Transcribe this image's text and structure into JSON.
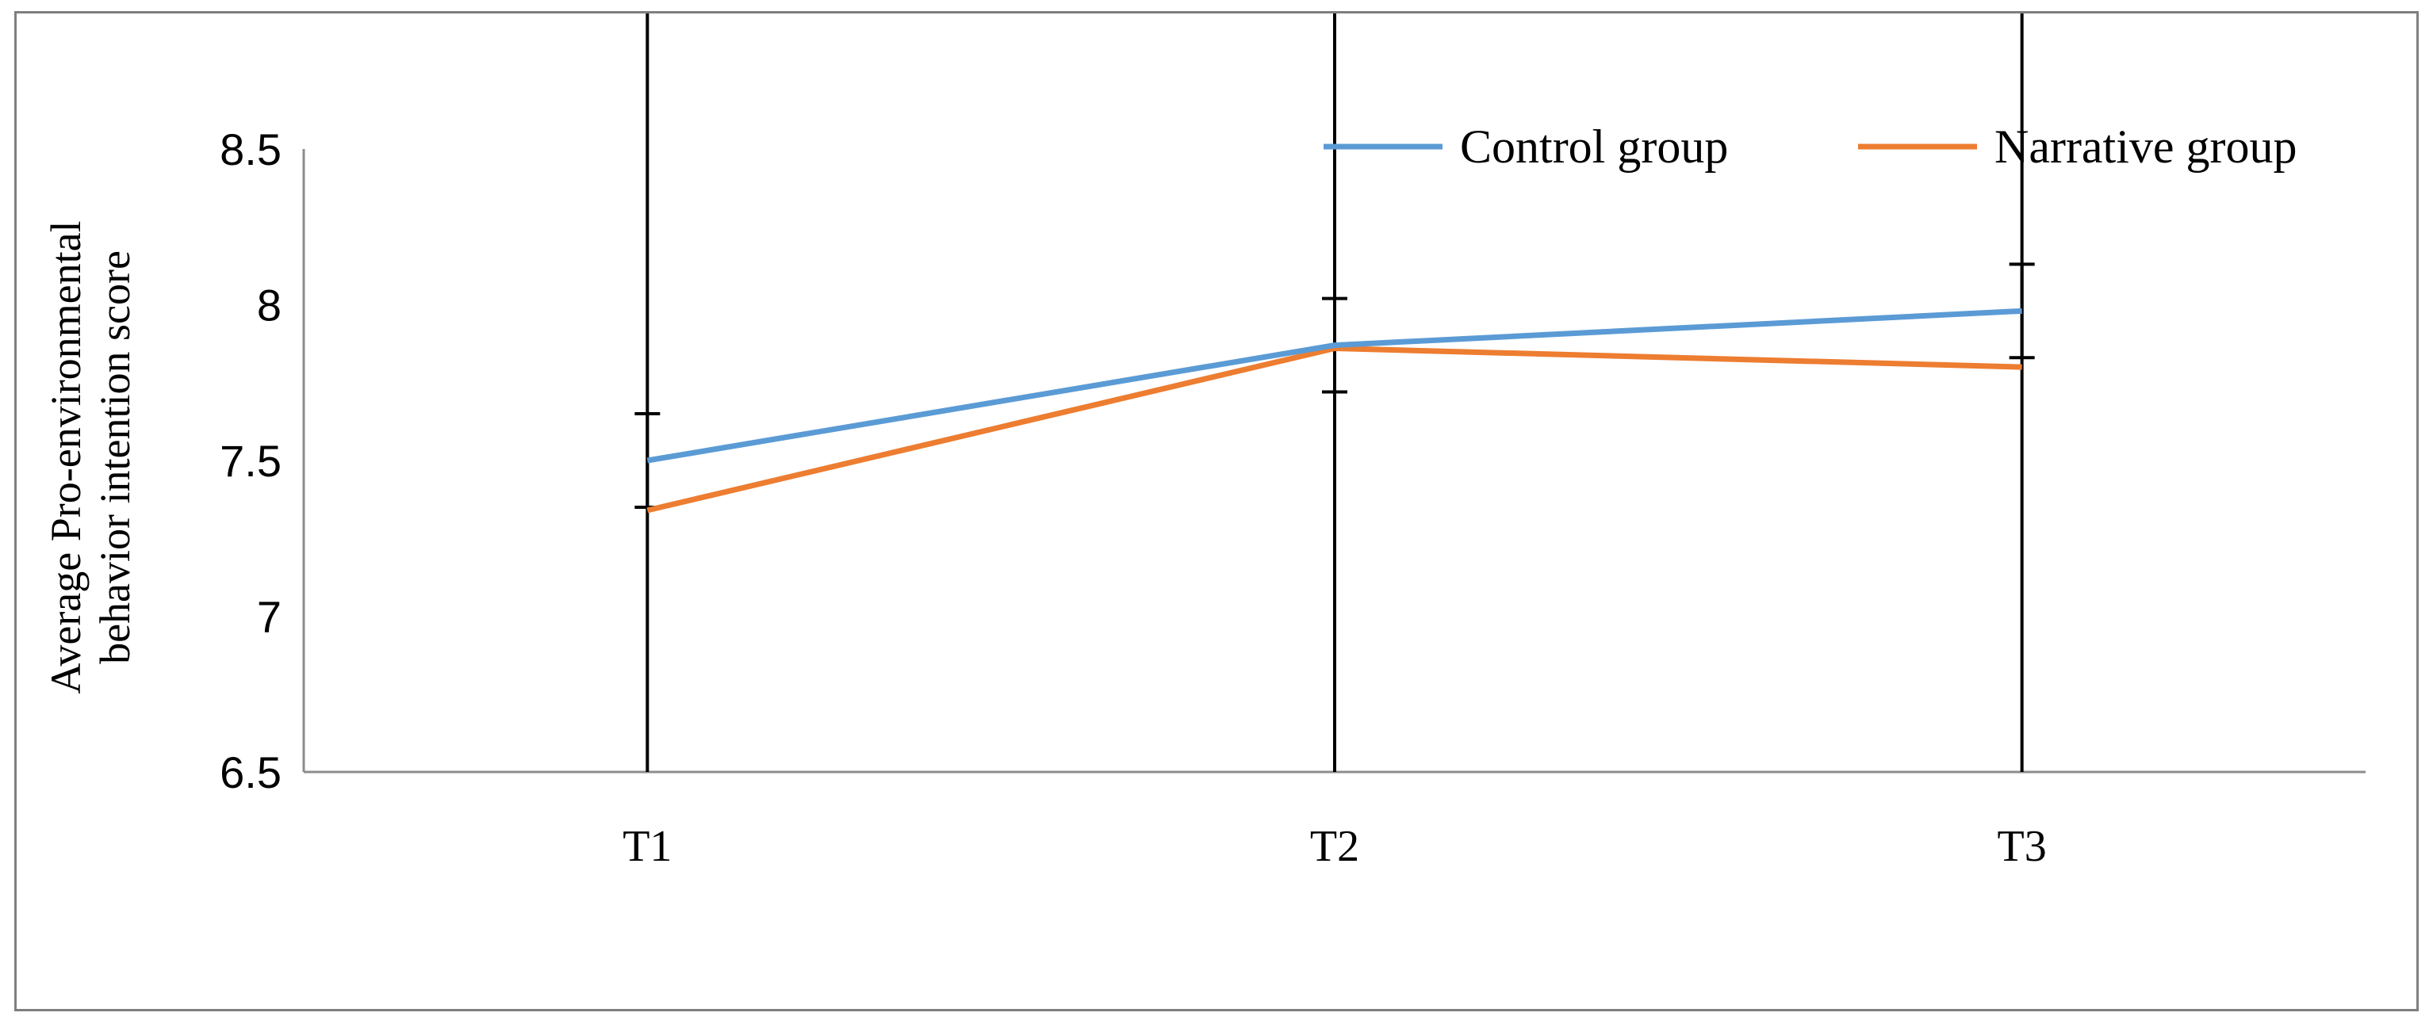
{
  "chart_data": {
    "type": "line",
    "title": "",
    "xlabel": "",
    "ylabel_lines": [
      "Average Pro-environmental",
      "behavior intention score"
    ],
    "categories": [
      "T1",
      "T2",
      "T3"
    ],
    "ylim": [
      6.5,
      8.5
    ],
    "yticks": [
      "6.5",
      "7",
      "7.5",
      "8",
      "8.5"
    ],
    "grid": false,
    "legend_position": "top-right",
    "series": [
      {
        "name": "Control group",
        "color": "#5b9bd5",
        "values": [
          7.5,
          7.87,
          7.98
        ],
        "err_upper": [
          0.15,
          0.15,
          0.15
        ],
        "err_lower": [
          0.15,
          0.15,
          0.15
        ]
      },
      {
        "name": "Narrative group",
        "color": "#ed7d31",
        "values": [
          7.34,
          7.86,
          7.8
        ],
        "err_upper": [
          1.66,
          1.66,
          1.66
        ],
        "err_lower": [
          0.84,
          1.36,
          1.3
        ]
      }
    ]
  }
}
